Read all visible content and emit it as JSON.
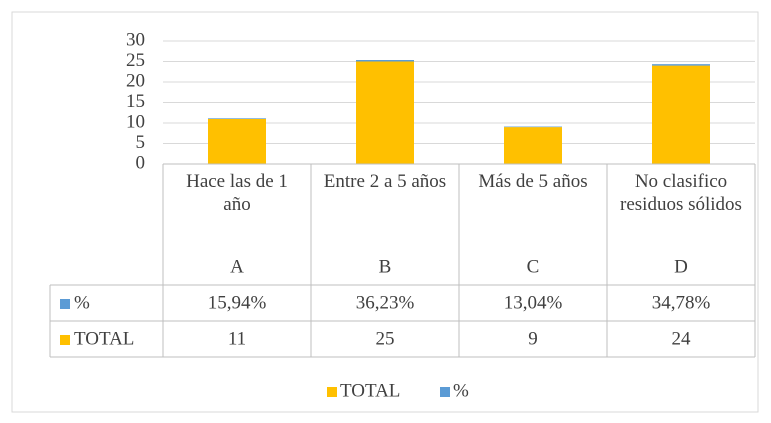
{
  "chart_data": {
    "type": "stacked_bar",
    "categories": [
      "A",
      "B",
      "C",
      "D"
    ],
    "category_labels": [
      "Hace las de 1 año",
      "Entre 2 a 5 años",
      "Más de 5 años",
      "No clasifico residuos sólidos"
    ],
    "series": [
      {
        "name": "TOTAL",
        "color": "#ffc000",
        "values": [
          11,
          25,
          9,
          24
        ]
      },
      {
        "name": "%",
        "color": "#5b9bd5",
        "values": [
          0.1594,
          0.3623,
          0.1304,
          0.3478
        ],
        "value_labels": [
          "15,94%",
          "36,23%",
          "13,04%",
          "34,78%"
        ]
      }
    ],
    "ylim": [
      0,
      30
    ],
    "yticks": [
      0,
      5,
      10,
      15,
      20,
      25,
      30
    ],
    "grid": true,
    "legend": "bottom",
    "data_table": true
  }
}
